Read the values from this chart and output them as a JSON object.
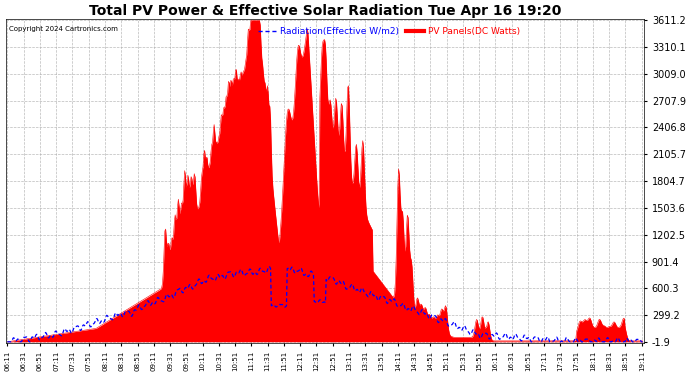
{
  "title": "Total PV Power & Effective Solar Radiation Tue Apr 16 19:20",
  "copyright": "Copyright 2024 Cartronics.com",
  "legend_radiation": "Radiation(Effective W/m2)",
  "legend_pv": "PV Panels(DC Watts)",
  "ymin": -1.9,
  "ymax": 3611.2,
  "yticks": [
    3611.2,
    3310.1,
    3009.0,
    2707.9,
    2406.8,
    2105.7,
    1804.7,
    1503.6,
    1202.5,
    901.4,
    600.3,
    299.2,
    -1.9
  ],
  "bg_color": "#ffffff",
  "plot_bg_color": "#ffffff",
  "grid_color": "#aaaaaa",
  "red_fill_color": "#ff0000",
  "blue_line_color": "#0000ff",
  "title_color": "#000000",
  "ytick_color": "#000000",
  "xtick_color": "#000000",
  "copyright_color": "#000000",
  "legend_radiation_color": "#0000ff",
  "legend_pv_color": "#ff0000",
  "xstart_minutes": 371,
  "xend_minutes": 1152,
  "xtick_interval_minutes": 20
}
